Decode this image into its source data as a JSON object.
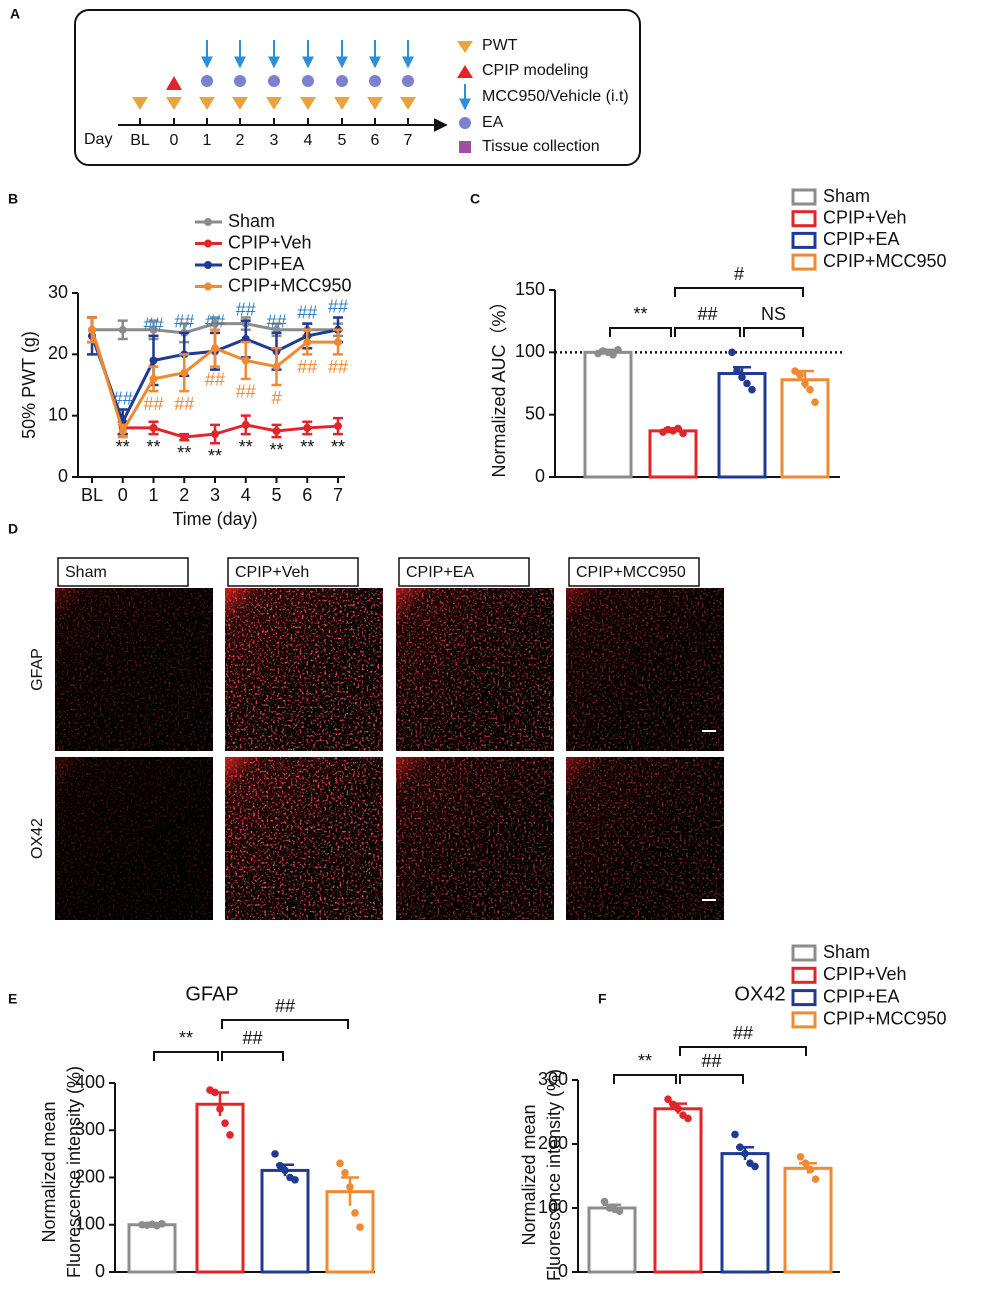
{
  "panel_letters": [
    "A",
    "B",
    "C",
    "D",
    "E",
    "F"
  ],
  "timeline": {
    "axis_label": "Day",
    "days": [
      "BL",
      "0",
      "1",
      "2",
      "3",
      "4",
      "5",
      "6",
      "7"
    ],
    "legend": [
      "PWT",
      "CPIP modeling",
      "MCC950/Vehicle (i.t)",
      "EA",
      "Tissue collection"
    ]
  },
  "images": {
    "columns": [
      "Sham",
      "CPIP+Veh",
      "CPIP+EA",
      "CPIP+MCC950"
    ],
    "rows": [
      "GFAP",
      "OX42"
    ]
  },
  "chart_data": [
    {
      "type": "line",
      "xlabel": "Time (day)",
      "ylabel": [
        "50%  PWT (g)"
      ],
      "categories": [
        "BL",
        "0",
        "1",
        "2",
        "3",
        "4",
        "5",
        "6",
        "7"
      ],
      "ylim": [
        0,
        30
      ],
      "yticks": [
        0,
        10,
        20,
        30
      ],
      "legend": true,
      "series": [
        {
          "name": "Sham",
          "color": "#8c8c8c",
          "values": [
            24,
            24,
            24,
            23.5,
            25,
            25,
            24,
            24,
            24
          ],
          "errors": [
            2,
            1.5,
            1.5,
            1.5,
            1,
            1,
            1,
            1,
            1
          ]
        },
        {
          "name": "CPIP+Veh",
          "color": "#e0262a",
          "values": [
            24,
            8,
            8,
            6.5,
            7,
            8.5,
            7.5,
            8,
            8.3
          ],
          "errors": [
            2,
            1,
            1,
            0.5,
            1.5,
            1.5,
            1,
            1,
            1.3
          ],
          "annotations": [
            null,
            "**",
            "**",
            "**",
            "**",
            "**",
            "**",
            "**",
            "**"
          ],
          "annotation_color": "#111111",
          "annotation_position": "below"
        },
        {
          "name": "CPIP+EA",
          "color": "#1f3a93",
          "values": [
            23,
            9,
            19,
            20,
            20.5,
            22.5,
            20.5,
            23,
            24
          ],
          "errors": [
            3,
            2,
            4,
            3.5,
            3,
            3,
            3,
            2,
            2
          ],
          "annotations": [
            null,
            "##",
            "##",
            "##",
            "##",
            "##",
            "##",
            "##",
            "##"
          ],
          "annotation_color": "#2f7fc1",
          "annotation_position": "above"
        },
        {
          "name": "CPIP+MCC950",
          "color": "#ef8a33",
          "values": [
            24,
            7.5,
            16,
            17,
            21,
            19,
            18,
            22,
            22
          ],
          "errors": [
            2,
            1,
            2,
            3,
            3,
            3,
            3,
            2,
            2
          ],
          "annotations": [
            null,
            null,
            "##",
            "##",
            "##",
            "##",
            "#",
            "##",
            "##"
          ],
          "annotation_color": "#ef8a33",
          "annotation_position": "below"
        }
      ]
    },
    {
      "type": "bar",
      "ylabel": [
        "Normalized AUC（%）"
      ],
      "series": [
        {
          "name": "Sham",
          "color": "#8c8c8c"
        },
        {
          "name": "CPIP+Veh",
          "color": "#e0262a"
        },
        {
          "name": "CPIP+EA",
          "color": "#1f3a93"
        },
        {
          "name": "CPIP+MCC950",
          "color": "#ef8a33"
        }
      ],
      "values": [
        100,
        37,
        83,
        78
      ],
      "errors": [
        2,
        2,
        5,
        7
      ],
      "points": [
        [
          99,
          101,
          100,
          98,
          102
        ],
        [
          36,
          38,
          37,
          39,
          35
        ],
        [
          100,
          85,
          80,
          75,
          70
        ],
        [
          85,
          82,
          75,
          70,
          60
        ]
      ],
      "ylim": [
        0,
        150
      ],
      "yticks": [
        0,
        50,
        100,
        150
      ],
      "reference_line": 100,
      "legend": true,
      "brackets": [
        {
          "from": 0,
          "to": 1,
          "label": "**"
        },
        {
          "from": 1,
          "to": 2,
          "label": "##"
        },
        {
          "from": 1,
          "to": 3,
          "label": "#"
        },
        {
          "from": 2,
          "to": 3,
          "label": "NS"
        }
      ]
    },
    {
      "type": "bar",
      "title": "GFAP",
      "ylabel": [
        "Normalized mean",
        "Fluorescence intensity (%)"
      ],
      "colors": [
        "#8c8c8c",
        "#e0262a",
        "#1f3a93",
        "#ef8a33"
      ],
      "values": [
        100,
        355,
        215,
        170
      ],
      "errors": [
        3,
        25,
        12,
        30
      ],
      "points": [
        [
          100,
          99,
          101,
          98,
          102
        ],
        [
          385,
          380,
          345,
          315,
          290
        ],
        [
          250,
          225,
          215,
          200,
          195
        ],
        [
          230,
          210,
          180,
          125,
          95
        ]
      ],
      "ylim": [
        0,
        400
      ],
      "yticks": [
        0,
        100,
        200,
        300,
        400
      ],
      "legend": false,
      "brackets": [
        {
          "from": 0,
          "to": 1,
          "label": "**"
        },
        {
          "from": 1,
          "to": 2,
          "label": "##"
        },
        {
          "from": 1,
          "to": 3,
          "label": "##"
        }
      ]
    },
    {
      "type": "bar",
      "title": "OX42",
      "ylabel": [
        "Normalized mean",
        "Fluorescence intensity (%)"
      ],
      "series": [
        {
          "name": "Sham",
          "color": "#8c8c8c"
        },
        {
          "name": "CPIP+Veh",
          "color": "#e0262a"
        },
        {
          "name": "CPIP+EA",
          "color": "#1f3a93"
        },
        {
          "name": "CPIP+MCC950",
          "color": "#ef8a33"
        }
      ],
      "values": [
        100,
        255,
        185,
        162
      ],
      "errors": [
        5,
        8,
        10,
        8
      ],
      "points": [
        [
          110,
          100,
          98,
          95
        ],
        [
          270,
          262,
          255,
          245,
          240
        ],
        [
          215,
          195,
          185,
          170,
          165
        ],
        [
          180,
          170,
          160,
          145
        ]
      ],
      "ylim": [
        0,
        300
      ],
      "yticks": [
        0,
        100,
        200,
        300
      ],
      "legend": true,
      "brackets": [
        {
          "from": 0,
          "to": 1,
          "label": "**"
        },
        {
          "from": 1,
          "to": 2,
          "label": "##"
        },
        {
          "from": 1,
          "to": 3,
          "label": "##"
        }
      ]
    }
  ]
}
